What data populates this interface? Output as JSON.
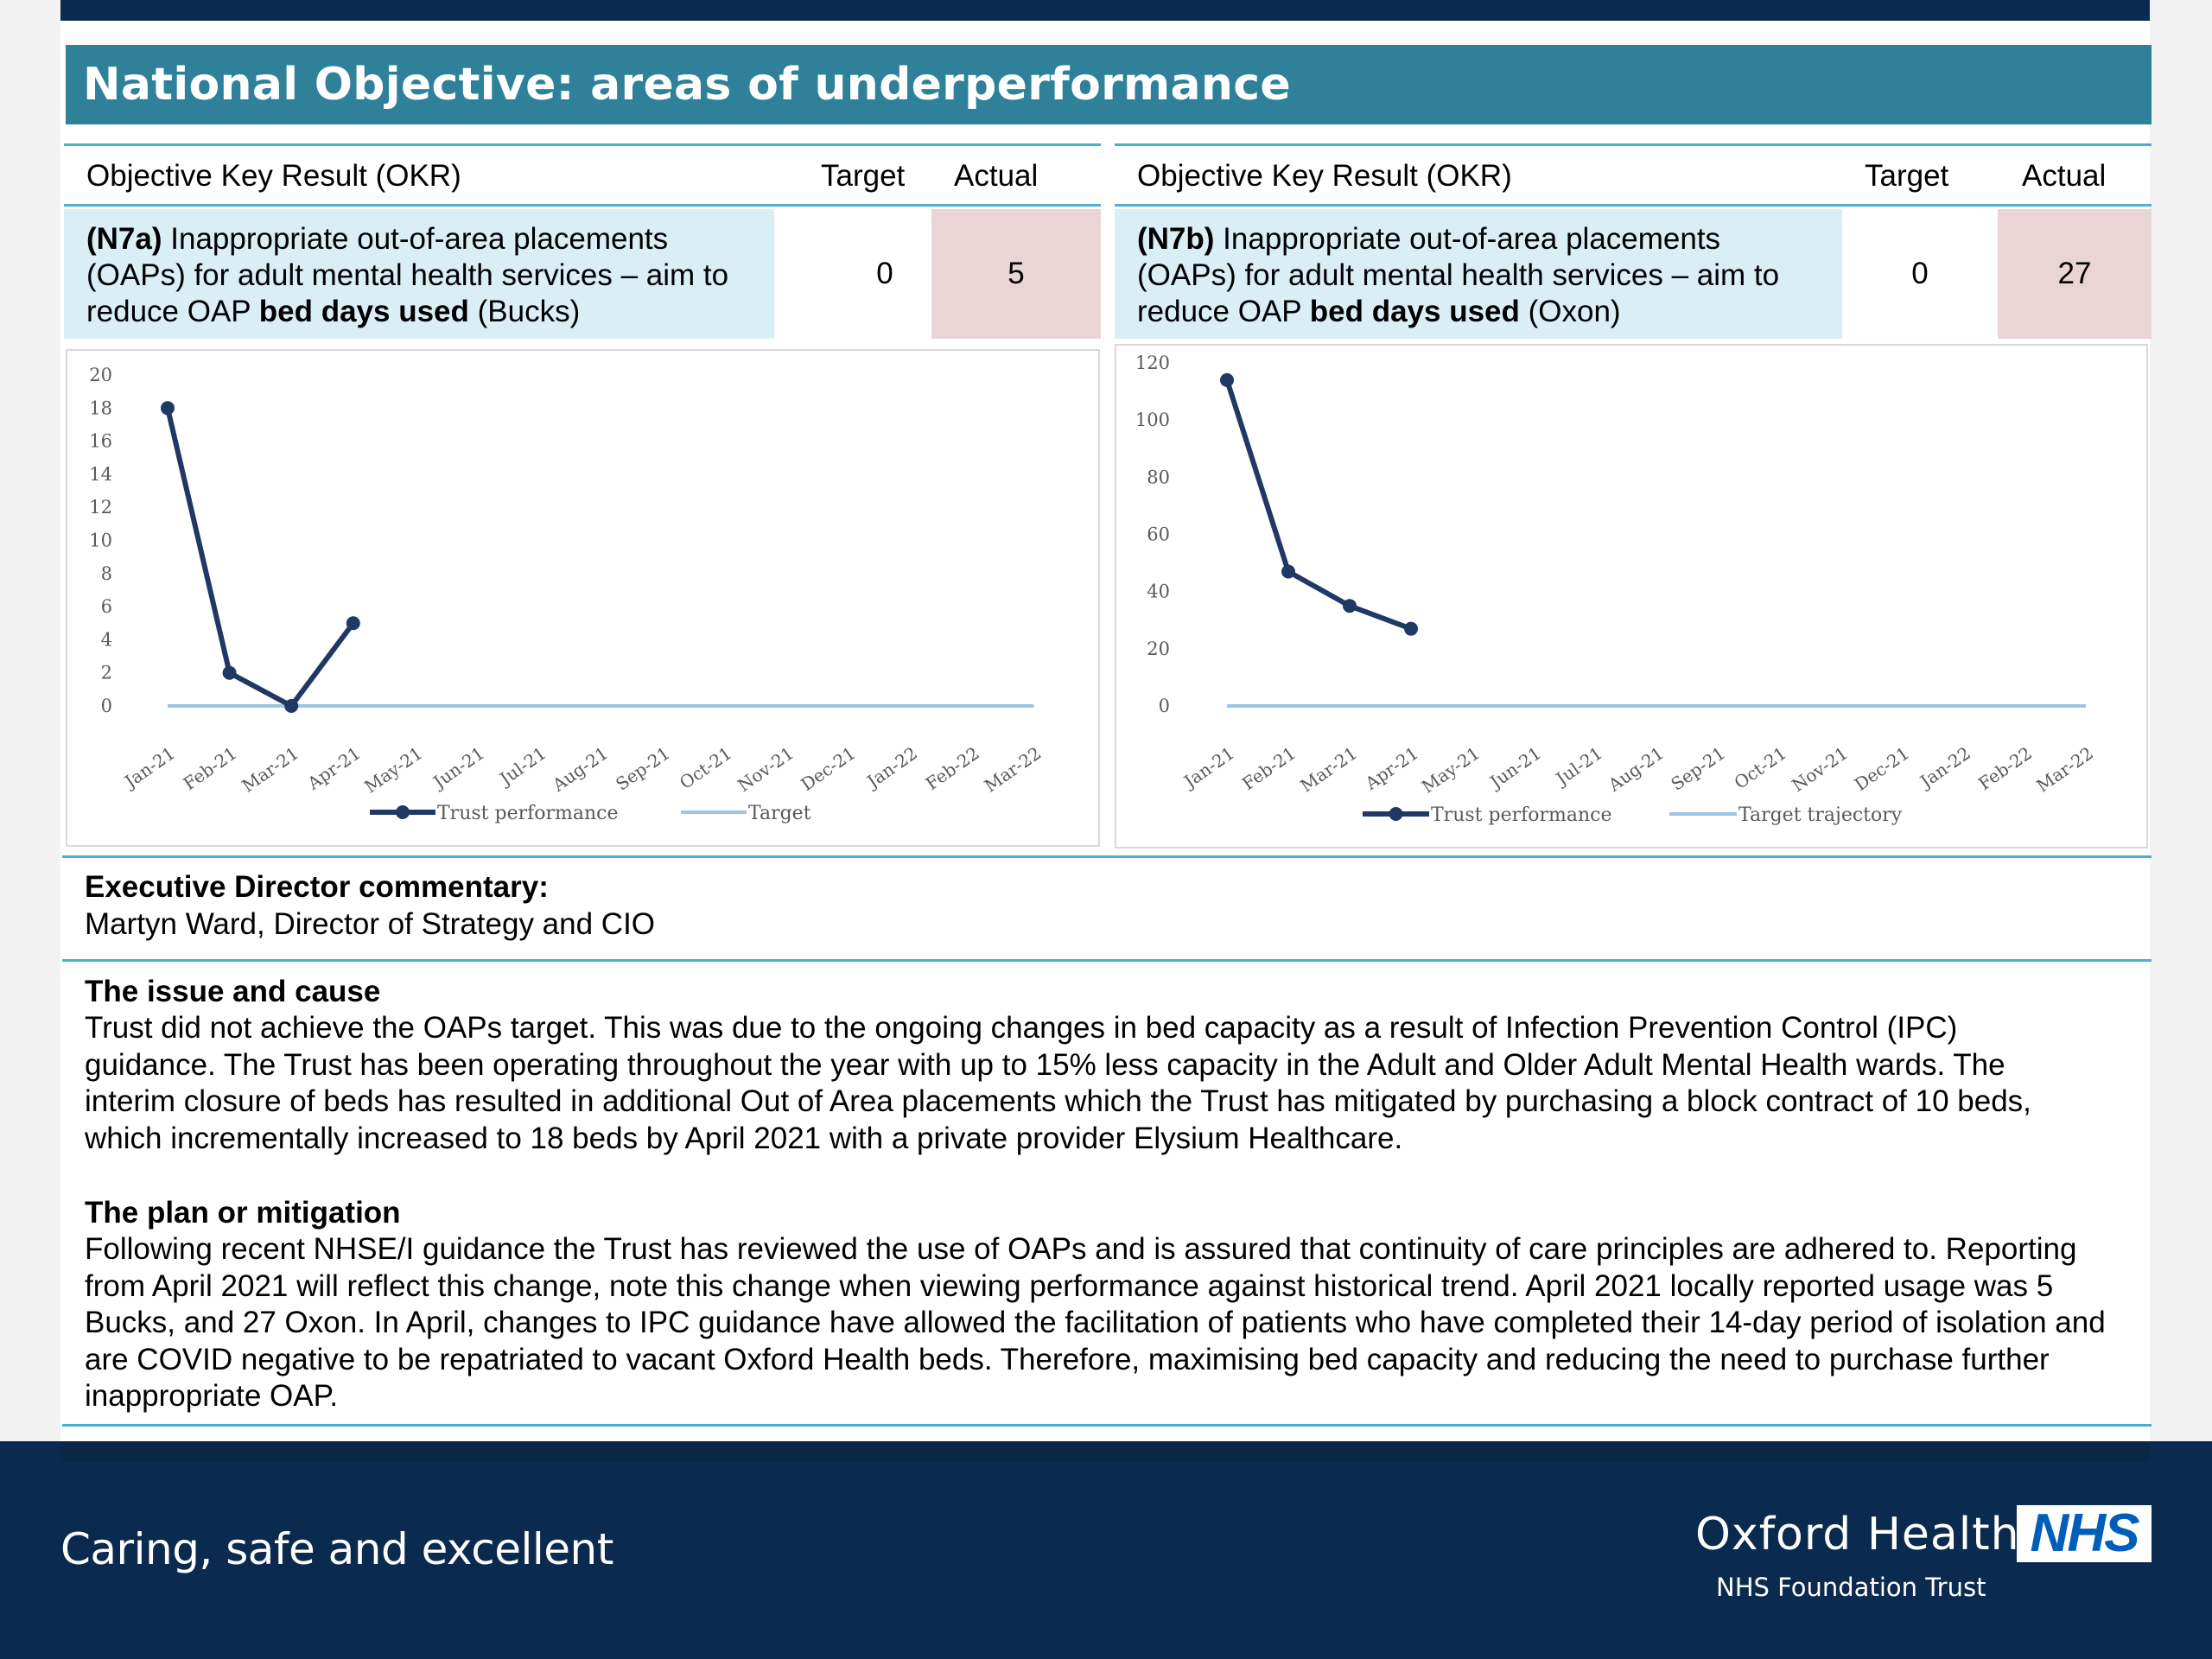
{
  "title": "National Objective: areas of underperformance",
  "okr_left": {
    "header_okr": "Objective Key Result (OKR)",
    "header_target": "Target",
    "header_actual": "Actual",
    "code": "(N7a)",
    "desc_line1": " Inappropriate out-of-area placements",
    "desc_line2": "(OAPs) for adult mental health services – aim to",
    "desc_line3a": "reduce OAP ",
    "desc_line3b": "bed days used",
    "desc_line3c": " (Bucks)",
    "target": "0",
    "actual": "5"
  },
  "okr_right": {
    "header_okr": "Objective Key Result (OKR)",
    "header_target": "Target",
    "header_actual": "Actual",
    "code": "(N7b)",
    "desc_line1": " Inappropriate out-of-area placements",
    "desc_line2": "(OAPs) for adult mental health services – aim to",
    "desc_line3a": "reduce OAP ",
    "desc_line3b": "bed days used",
    "desc_line3c": " (Oxon)",
    "target": "0",
    "actual": "27"
  },
  "chart_data": [
    {
      "type": "line",
      "categories": [
        "Jan-21",
        "Feb-21",
        "Mar-21",
        "Apr-21",
        "May-21",
        "Jun-21",
        "Jul-21",
        "Aug-21",
        "Sep-21",
        "Oct-21",
        "Nov-21",
        "Dec-21",
        "Jan-22",
        "Feb-22",
        "Mar-22"
      ],
      "series": [
        {
          "name": "Trust performance",
          "values": [
            18,
            2,
            0,
            5,
            null,
            null,
            null,
            null,
            null,
            null,
            null,
            null,
            null,
            null,
            null
          ]
        },
        {
          "name": "Target",
          "values": [
            0,
            0,
            0,
            0,
            0,
            0,
            0,
            0,
            0,
            0,
            0,
            0,
            0,
            0,
            0
          ]
        }
      ],
      "yticks": [
        0,
        2,
        4,
        6,
        8,
        10,
        12,
        14,
        16,
        18,
        20
      ],
      "ylim": [
        0,
        20
      ],
      "grid": false,
      "legend": "bottom",
      "colors": {
        "performance": "#1f3864",
        "target": "#9dc3e6"
      }
    },
    {
      "type": "line",
      "categories": [
        "Jan-21",
        "Feb-21",
        "Mar-21",
        "Apr-21",
        "May-21",
        "Jun-21",
        "Jul-21",
        "Aug-21",
        "Sep-21",
        "Oct-21",
        "Nov-21",
        "Dec-21",
        "Jan-22",
        "Feb-22",
        "Mar-22"
      ],
      "series": [
        {
          "name": "Trust performance",
          "values": [
            114,
            47,
            35,
            27,
            null,
            null,
            null,
            null,
            null,
            null,
            null,
            null,
            null,
            null,
            null
          ]
        },
        {
          "name": "Target trajectory",
          "values": [
            0,
            0,
            0,
            0,
            0,
            0,
            0,
            0,
            0,
            0,
            0,
            0,
            0,
            0,
            0
          ]
        }
      ],
      "yticks": [
        0,
        20,
        40,
        60,
        80,
        100,
        120
      ],
      "ylim": [
        0,
        120
      ],
      "grid": false,
      "legend": "bottom",
      "colors": {
        "performance": "#1f3864",
        "target": "#9dc3e6"
      }
    }
  ],
  "commentary": {
    "label": "Executive Director commentary:",
    "name": "Martyn Ward, Director of Strategy and CIO"
  },
  "issue": {
    "heading": "The issue and cause",
    "lines": [
      "Trust did not achieve the OAPs target. This was due to the ongoing changes in bed capacity as a result of Infection Prevention Control (IPC)",
      "guidance.  The Trust has been operating throughout the year with up to 15% less capacity in the Adult and Older Adult Mental Health wards.   The",
      "interim closure of beds has resulted in additional Out of Area placements which the Trust has mitigated by purchasing a block contract of 10 beds,",
      "which incrementally increased to 18 beds by April 2021 with a private provider Elysium Healthcare."
    ]
  },
  "plan": {
    "heading": "The plan or mitigation",
    "lines": [
      "Following recent NHSE/I guidance the Trust has reviewed the use of OAPs and is assured that continuity of care principles are adhered to.  Reporting",
      "from April 2021 will reflect this change, note this change when viewing performance against historical trend.  April 2021 locally reported usage was 5",
      "Bucks, and 27 Oxon. In April, changes to IPC guidance have allowed the facilitation of patients who have completed their 14-day period of isolation and",
      "are COVID negative to be repatriated to vacant Oxford Health beds. Therefore, maximising bed capacity and reducing the need to purchase further",
      "inappropriate OAP."
    ]
  },
  "footer": {
    "tagline": "Caring, safe and excellent",
    "org_name": "Oxford Health",
    "org_sub": "NHS Foundation Trust",
    "logo_text": "NHS"
  }
}
